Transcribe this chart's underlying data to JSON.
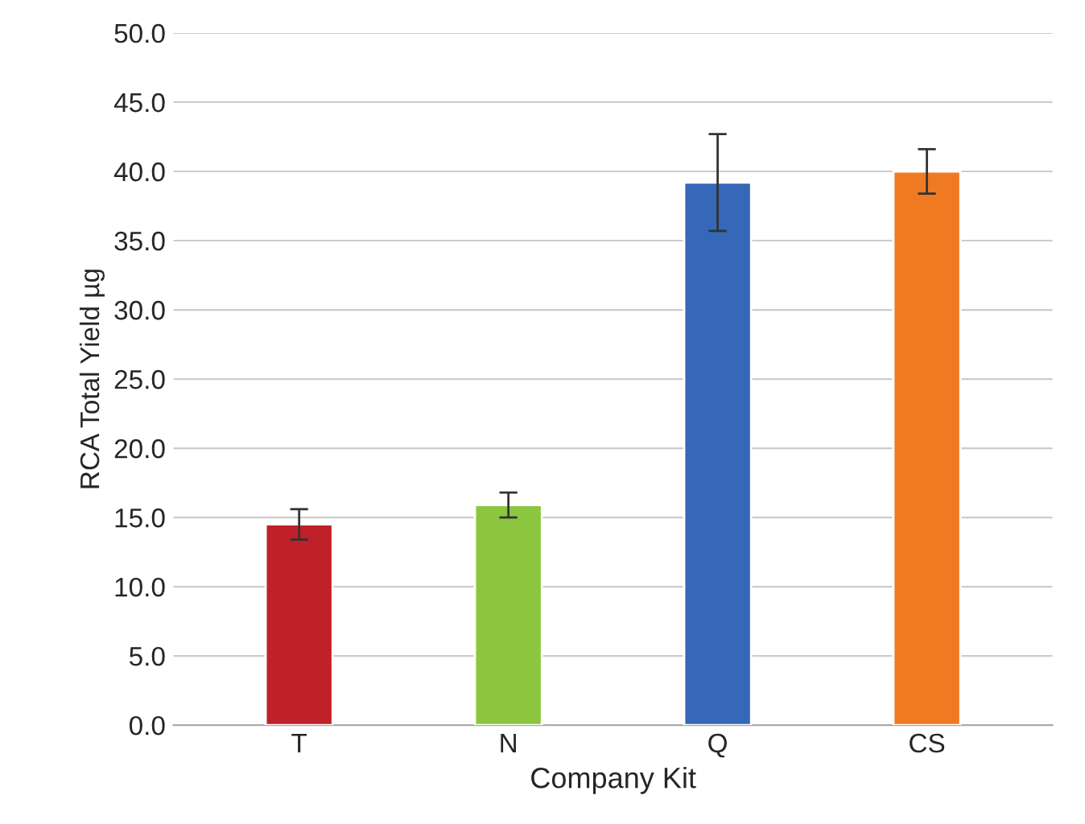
{
  "chart_data": {
    "type": "bar",
    "xlabel": "Company Kit",
    "ylabel": "RCA Total Yield µg",
    "categories": [
      "T",
      "N",
      "Q",
      "CS"
    ],
    "values": [
      14.5,
      15.9,
      39.2,
      40.0
    ],
    "errors": [
      1.1,
      0.9,
      3.5,
      1.6
    ],
    "colors": [
      "#c0202a",
      "#8cc63f",
      "#3568b8",
      "#ef7a22"
    ],
    "ylim": [
      0,
      50
    ],
    "yticks": [
      {
        "value": 0,
        "label": "0.0"
      },
      {
        "value": 5,
        "label": "5.0"
      },
      {
        "value": 10,
        "label": "10.0"
      },
      {
        "value": 15,
        "label": "15.0"
      },
      {
        "value": 20,
        "label": "20.0"
      },
      {
        "value": 25,
        "label": "25.0"
      },
      {
        "value": 30,
        "label": "30.0"
      },
      {
        "value": 35,
        "label": "35.0"
      },
      {
        "value": 40,
        "label": "40.0"
      },
      {
        "value": 45,
        "label": "45.0"
      },
      {
        "value": 50,
        "label": "50.0"
      }
    ],
    "grid": "y"
  }
}
